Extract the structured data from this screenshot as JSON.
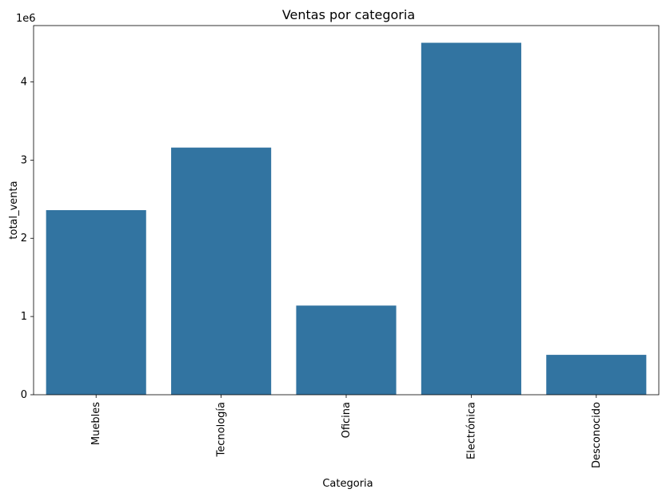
{
  "chart_data": {
    "type": "bar",
    "title": "Ventas por categoria",
    "xlabel": "Categoria",
    "ylabel": "total_venta",
    "y_offset_label": "1e6",
    "categories": [
      "Muebles",
      "Tecnología",
      "Oficina",
      "Electrónica",
      "Desconocido"
    ],
    "values": [
      2360000,
      3160000,
      1140000,
      4500000,
      510000
    ],
    "ylim": [
      0,
      4720000
    ],
    "y_ticks": [
      0,
      1000000,
      2000000,
      3000000,
      4000000
    ],
    "y_tick_labels": [
      "0",
      "1",
      "2",
      "3",
      "4"
    ],
    "grid": false,
    "bar_color": "#3274a1"
  }
}
